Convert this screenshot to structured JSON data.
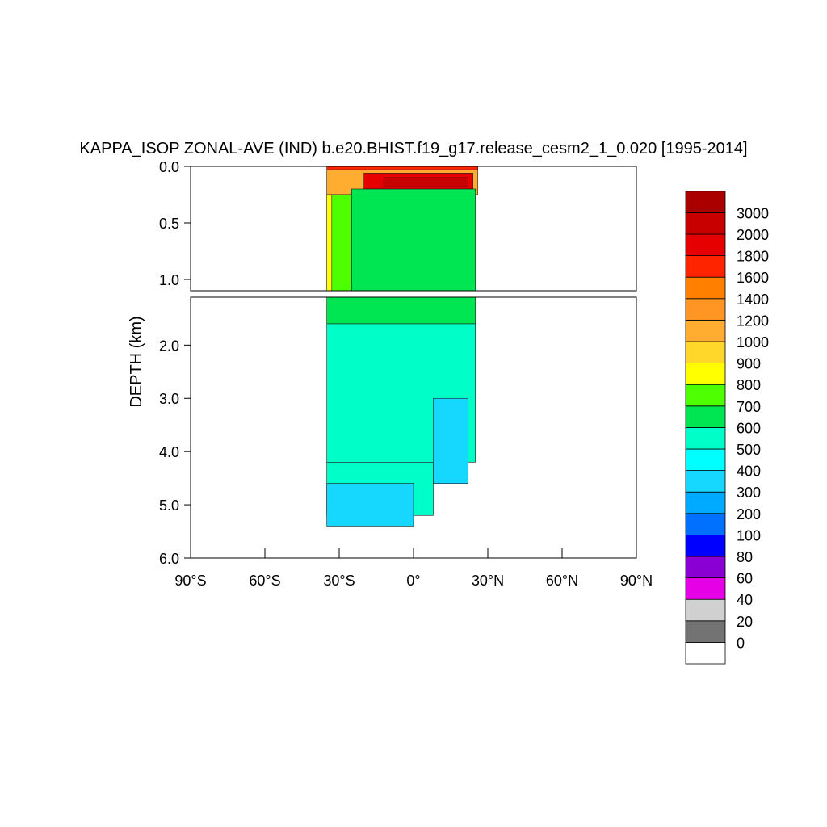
{
  "chart_data": {
    "type": "heatmap",
    "title": "KAPPA_ISOP ZONAL-AVE (IND) b.e20.BHIST.f19_g17.release_cesm2_1_0.020 [1995-2014]",
    "ylabel": "DEPTH (km)",
    "xlabel": "",
    "x_ticks": [
      {
        "value": -90,
        "label": "90°S"
      },
      {
        "value": -60,
        "label": "60°S"
      },
      {
        "value": -30,
        "label": "30°S"
      },
      {
        "value": 0,
        "label": "0°"
      },
      {
        "value": 30,
        "label": "30°N"
      },
      {
        "value": 60,
        "label": "60°N"
      },
      {
        "value": 90,
        "label": "90°N"
      }
    ],
    "xlim": [
      -90,
      90
    ],
    "panels": [
      {
        "name": "upper",
        "ylim": [
          0,
          1.1
        ],
        "y_ticks": [
          {
            "value": 0,
            "label": "0.0"
          },
          {
            "value": 0.5,
            "label": "0.5"
          },
          {
            "value": 1.0,
            "label": "1.0"
          }
        ]
      },
      {
        "name": "lower",
        "ylim": [
          1.1,
          6.0
        ],
        "y_ticks": [
          {
            "value": 2,
            "label": "2.0"
          },
          {
            "value": 3,
            "label": "3.0"
          },
          {
            "value": 4,
            "label": "4.0"
          },
          {
            "value": 5,
            "label": "5.0"
          },
          {
            "value": 6,
            "label": "6.0"
          }
        ]
      }
    ],
    "levels": [
      "0",
      "20",
      "40",
      "60",
      "80",
      "100",
      "200",
      "300",
      "400",
      "500",
      "600",
      "700",
      "800",
      "900",
      "1000",
      "1200",
      "1400",
      "1600",
      "1800",
      "2000",
      "3000"
    ],
    "colors": [
      "#ffffff",
      "#737373",
      "#d0d0d0",
      "#e600e6",
      "#8a00d4",
      "#0000ff",
      "#0070ff",
      "#00aaff",
      "#16d8ff",
      "#00ffff",
      "#00ffc8",
      "#00e652",
      "#4dff00",
      "#ffff00",
      "#ffd72a",
      "#ffad30",
      "#ff9624",
      "#ff7f00",
      "#ff2400",
      "#e60000",
      "#c80000",
      "#aa0000"
    ],
    "colorbar_position": "right",
    "ocean_lat_range": [
      -35,
      26
    ],
    "regions": [
      {
        "ymin": 0.0,
        "ymax": 0.03,
        "xmin": -35,
        "xmax": 26,
        "value": 1700
      },
      {
        "ymin": 0.03,
        "ymax": 0.25,
        "xmin": -35,
        "xmax": 26,
        "value": 1100
      },
      {
        "ymin": 0.06,
        "ymax": 0.2,
        "xmin": -20,
        "xmax": 24,
        "value": 1800
      },
      {
        "ymin": 0.1,
        "ymax": 0.18,
        "xmin": -12,
        "xmax": 22,
        "value": 2500
      },
      {
        "ymin": 0.25,
        "ymax": 1.1,
        "xmin": -35,
        "xmax": -33,
        "value": 850
      },
      {
        "ymin": 0.25,
        "ymax": 1.1,
        "xmin": -33,
        "xmax": -25,
        "value": 750
      },
      {
        "ymin": 0.2,
        "ymax": 1.1,
        "xmin": -25,
        "xmax": 25,
        "value": 650
      },
      {
        "ymin": 1.1,
        "ymax": 1.6,
        "xmin": -35,
        "xmax": 25,
        "value": 650
      },
      {
        "ymin": 1.6,
        "ymax": 4.2,
        "xmin": -35,
        "xmax": 25,
        "value": 550
      },
      {
        "ymin": 4.2,
        "ymax": 5.2,
        "xmin": -35,
        "xmax": 8,
        "value": 550
      },
      {
        "ymin": 4.6,
        "ymax": 5.4,
        "xmin": -35,
        "xmax": 0,
        "value": 350
      },
      {
        "ymin": 3.0,
        "ymax": 4.6,
        "xmin": 8,
        "xmax": 22,
        "value": 350
      }
    ]
  }
}
